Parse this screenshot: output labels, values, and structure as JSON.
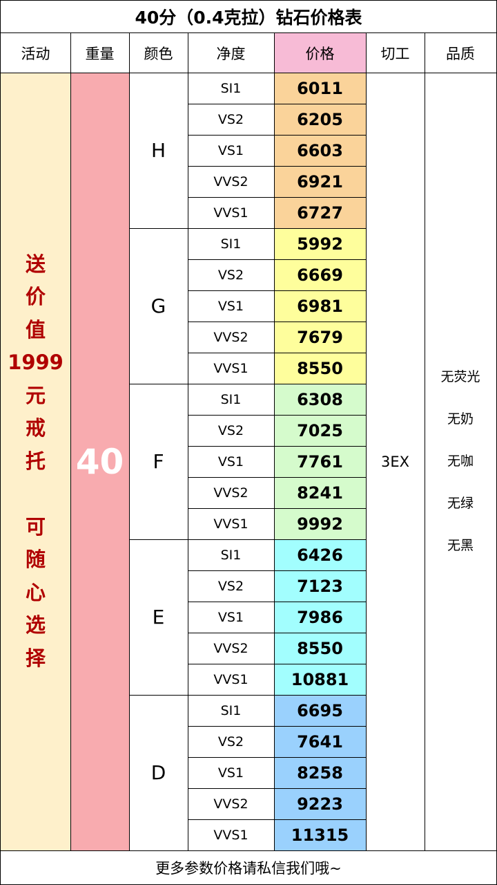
{
  "title": "40分（0.4克拉）钻石价格表",
  "headers": {
    "activity": "活动",
    "weight": "重量",
    "color": "颜色",
    "clarity": "净度",
    "price": "价格",
    "cut": "切工",
    "quality": "品质"
  },
  "activity_lines_1": [
    "送",
    "价",
    "值",
    "1999",
    "元",
    "戒",
    "托"
  ],
  "activity_lines_2": [
    "可",
    "随",
    "心",
    "选",
    "择"
  ],
  "weight_value": "40",
  "cut_value": "3EX",
  "quality_items": [
    "无荧光",
    "无奶",
    "无咖",
    "无绿",
    "无黑"
  ],
  "groups": [
    {
      "color": "H",
      "fill": "#fad39a",
      "rows": [
        {
          "clarity": "SI1",
          "price": "6011"
        },
        {
          "clarity": "VS2",
          "price": "6205"
        },
        {
          "clarity": "VS1",
          "price": "6603"
        },
        {
          "clarity": "VVS2",
          "price": "6921"
        },
        {
          "clarity": "VVS1",
          "price": "6727"
        }
      ]
    },
    {
      "color": "G",
      "fill": "#fefe9c",
      "rows": [
        {
          "clarity": "SI1",
          "price": "5992"
        },
        {
          "clarity": "VS2",
          "price": "6669"
        },
        {
          "clarity": "VS1",
          "price": "6981"
        },
        {
          "clarity": "VVS2",
          "price": "7679"
        },
        {
          "clarity": "VVS1",
          "price": "8550"
        }
      ]
    },
    {
      "color": "F",
      "fill": "#d5fbcc",
      "rows": [
        {
          "clarity": "SI1",
          "price": "6308"
        },
        {
          "clarity": "VS2",
          "price": "7025"
        },
        {
          "clarity": "VS1",
          "price": "7761"
        },
        {
          "clarity": "VVS2",
          "price": "8241"
        },
        {
          "clarity": "VVS1",
          "price": "9992"
        }
      ]
    },
    {
      "color": "E",
      "fill": "#a2fefe",
      "rows": [
        {
          "clarity": "SI1",
          "price": "6426"
        },
        {
          "clarity": "VS2",
          "price": "7123"
        },
        {
          "clarity": "VS1",
          "price": "7986"
        },
        {
          "clarity": "VVS2",
          "price": "8550"
        },
        {
          "clarity": "VVS1",
          "price": "10881"
        }
      ]
    },
    {
      "color": "D",
      "fill": "#9ad1fd",
      "rows": [
        {
          "clarity": "SI1",
          "price": "6695"
        },
        {
          "clarity": "VS2",
          "price": "7641"
        },
        {
          "clarity": "VS1",
          "price": "8258"
        },
        {
          "clarity": "VVS2",
          "price": "9223"
        },
        {
          "clarity": "VVS1",
          "price": "11315"
        }
      ]
    }
  ],
  "colors": {
    "activity_bg": "#fef0cb",
    "weight_bg": "#f8abaf",
    "price_header_bg": "#f7bbd6",
    "promo_text": "#b00000"
  },
  "footer": "更多参数价格请私信我们哦~"
}
